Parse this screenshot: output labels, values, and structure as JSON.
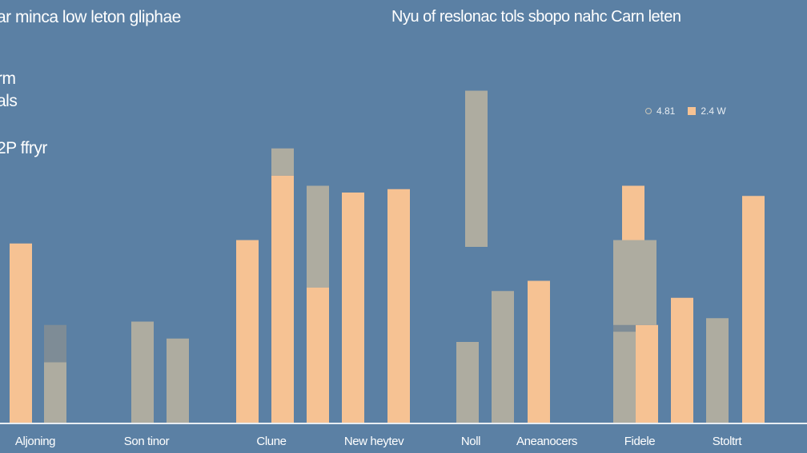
{
  "header": {
    "title_left": "ar minca low leton gliphae",
    "title_right": "Nyu of reslonac tols sbopo nahc Carn leten"
  },
  "side_labels": [
    "rm",
    "als",
    "2P ffryr"
  ],
  "legend": {
    "item1": "4.81",
    "item2": "2.4 W"
  },
  "colors": {
    "background": "#5b80a4",
    "orange": "#f6c293",
    "gray": "#aeaca0",
    "axis": "#e8edf2"
  },
  "chart_data": {
    "type": "bar",
    "ylim": [
      0,
      100
    ],
    "grid": false,
    "legend_position": "top-right",
    "categories": [
      "Aljoning",
      "Son tinor",
      "Clune",
      "New heytev",
      "Noll",
      "Aneanocers",
      "Fidele",
      "Stoltrt"
    ],
    "bars": [
      {
        "category": "Aljoning",
        "series": 1,
        "bottom": 0,
        "top": 53
      },
      {
        "category": "Aljoning",
        "series": 0,
        "bottom": 0,
        "top": 18
      },
      {
        "category": "Aljoning",
        "series": 0,
        "bottom": 18,
        "top": 29,
        "shade": "dark"
      },
      {
        "category": "Son tinor",
        "series": 0,
        "bottom": 0,
        "top": 30
      },
      {
        "category": "Son tinor",
        "series": 0,
        "bottom": 0,
        "top": 25
      },
      {
        "category": "Clune",
        "series": 1,
        "bottom": 0,
        "top": 54
      },
      {
        "category": "Clune",
        "series": 1,
        "bottom": 0,
        "top": 73
      },
      {
        "category": "Clune",
        "series": 0,
        "bottom": 73,
        "top": 81
      },
      {
        "category": "New heytev",
        "series": 1,
        "bottom": 0,
        "top": 40
      },
      {
        "category": "New heytev",
        "series": 0,
        "bottom": 40,
        "top": 70
      },
      {
        "category": "New heytev",
        "series": 1,
        "bottom": 0,
        "top": 68
      },
      {
        "category": "New heytev",
        "series": 1,
        "bottom": 0,
        "top": 69
      },
      {
        "category": "Noll",
        "series": 0,
        "bottom": 0,
        "top": 24
      },
      {
        "category": "Noll",
        "series": 0,
        "bottom": 52,
        "top": 98
      },
      {
        "category": "Aneanocers",
        "series": 0,
        "bottom": 0,
        "top": 39
      },
      {
        "category": "Aneanocers",
        "series": 1,
        "bottom": 0,
        "top": 42
      },
      {
        "category": "Fidele",
        "series": 0,
        "bottom": 0,
        "top": 43
      },
      {
        "category": "Fidele",
        "series": 0,
        "bottom": 27,
        "top": 32,
        "shade": "dark"
      },
      {
        "category": "Fidele",
        "series": 1,
        "bottom": 0,
        "top": 29
      },
      {
        "category": "Fidele",
        "series": 0,
        "bottom": 29,
        "top": 54
      },
      {
        "category": "Fidele",
        "series": 1,
        "bottom": 54,
        "top": 70
      },
      {
        "category": "Fidele",
        "series": 0,
        "bottom": 43,
        "top": 54
      },
      {
        "category": "Stoltrt",
        "series": 1,
        "bottom": 0,
        "top": 37
      },
      {
        "category": "Stoltrt",
        "series": 0,
        "bottom": 0,
        "top": 31
      },
      {
        "category": "Stoltrt",
        "series": 1,
        "bottom": 0,
        "top": 67
      }
    ]
  }
}
